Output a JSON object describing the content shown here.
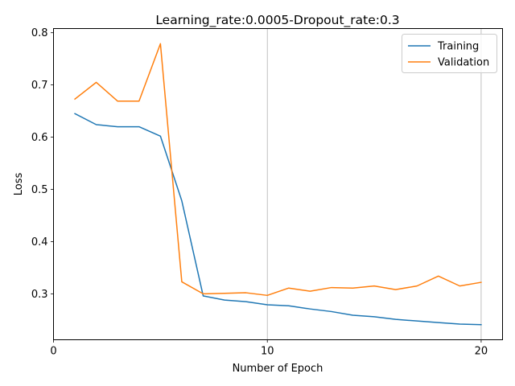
{
  "chart_data": {
    "type": "line",
    "title": "Learning_rate:0.0005-Dropout_rate:0.3",
    "xlabel": "Number of Epoch",
    "ylabel": "Loss",
    "xlim": [
      0,
      21
    ],
    "ylim": [
      0.212,
      0.808
    ],
    "xticks": [
      0,
      10,
      20
    ],
    "yticks": [
      0.3,
      0.4,
      0.5,
      0.6,
      0.7,
      0.8
    ],
    "grid": "vertical at x ticks",
    "legend_position": "top-right",
    "x": [
      1,
      2,
      3,
      4,
      5,
      6,
      7,
      8,
      9,
      10,
      11,
      12,
      13,
      14,
      15,
      16,
      17,
      18,
      19,
      20
    ],
    "series": [
      {
        "name": "Training",
        "color": "#1f77b4",
        "values": [
          0.645,
          0.624,
          0.62,
          0.62,
          0.602,
          0.478,
          0.296,
          0.288,
          0.285,
          0.279,
          0.277,
          0.271,
          0.266,
          0.259,
          0.256,
          0.251,
          0.248,
          0.245,
          0.242,
          0.241
        ]
      },
      {
        "name": "Validation",
        "color": "#ff7f0e",
        "values": [
          0.673,
          0.705,
          0.669,
          0.669,
          0.779,
          0.323,
          0.3,
          0.301,
          0.302,
          0.297,
          0.311,
          0.305,
          0.312,
          0.311,
          0.315,
          0.308,
          0.315,
          0.334,
          0.315,
          0.322
        ]
      }
    ]
  }
}
